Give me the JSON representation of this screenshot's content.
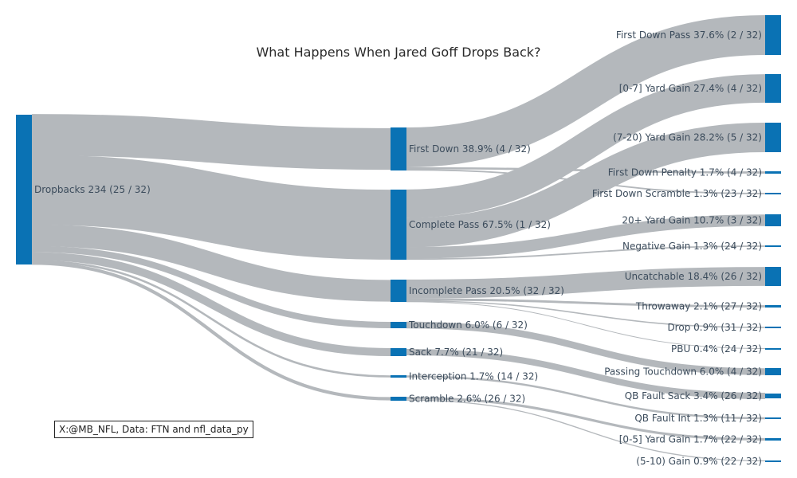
{
  "title": "What Happens When Jared Goff Drops Back?",
  "credit": "X:@MB_NFL, Data: FTN and nfl_data_py",
  "colors": {
    "node": "#0a72b4",
    "link": "#b4b8bc",
    "text": "#3c4c5c"
  },
  "chart_data": {
    "type": "sankey",
    "nodes": [
      {
        "id": "dropbacks",
        "label": "Dropbacks 234 (25 / 32)"
      },
      {
        "id": "first_down",
        "label": "First Down 38.9% (4 / 32)"
      },
      {
        "id": "complete",
        "label": "Complete Pass 67.5% (1 / 32)"
      },
      {
        "id": "incomplete",
        "label": "Incomplete Pass 20.5% (32 / 32)"
      },
      {
        "id": "touchdown",
        "label": "Touchdown 6.0% (6 / 32)"
      },
      {
        "id": "sack",
        "label": "Sack 7.7% (21 / 32)"
      },
      {
        "id": "interception",
        "label": "Interception 1.7% (14 / 32)"
      },
      {
        "id": "scramble",
        "label": "Scramble 2.6% (26 / 32)"
      },
      {
        "id": "fd_pass",
        "label": "First Down Pass 37.6% (2 / 32)"
      },
      {
        "id": "gain_0_7",
        "label": "[0-7] Yard Gain 27.4% (4 / 32)"
      },
      {
        "id": "gain_7_20",
        "label": "(7-20) Yard Gain 28.2% (5 / 32)"
      },
      {
        "id": "fd_penalty",
        "label": "First Down Penalty 1.7% (4 / 32)"
      },
      {
        "id": "fd_scramble",
        "label": "First Down Scramble 1.3% (23 / 32)"
      },
      {
        "id": "gain_20",
        "label": "20+ Yard Gain 10.7% (3 / 32)"
      },
      {
        "id": "neg_gain",
        "label": "Negative Gain 1.3% (24 / 32)"
      },
      {
        "id": "uncatchable",
        "label": "Uncatchable 18.4% (26 / 32)"
      },
      {
        "id": "throwaway",
        "label": "Throwaway 2.1% (27 / 32)"
      },
      {
        "id": "drop",
        "label": "Drop 0.9% (31 / 32)"
      },
      {
        "id": "pbu",
        "label": "PBU 0.4% (24 / 32)"
      },
      {
        "id": "pass_td",
        "label": "Passing Touchdown 6.0% (4 / 32)"
      },
      {
        "id": "qb_sack",
        "label": "QB Fault Sack 3.4% (26 / 32)"
      },
      {
        "id": "qb_int",
        "label": "QB Fault Int 1.3% (11 / 32)"
      },
      {
        "id": "gain_0_5",
        "label": "[0-5] Yard Gain 1.7% (22 / 32)"
      },
      {
        "id": "gain_5_10",
        "label": "(5-10) Gain 0.9% (22 / 32)"
      }
    ],
    "links": [
      {
        "source": "dropbacks",
        "target": "first_down",
        "value": 91
      },
      {
        "source": "dropbacks",
        "target": "complete",
        "value": 158
      },
      {
        "source": "dropbacks",
        "target": "incomplete",
        "value": 48
      },
      {
        "source": "dropbacks",
        "target": "touchdown",
        "value": 14
      },
      {
        "source": "dropbacks",
        "target": "sack",
        "value": 18
      },
      {
        "source": "dropbacks",
        "target": "interception",
        "value": 4
      },
      {
        "source": "dropbacks",
        "target": "scramble",
        "value": 6
      },
      {
        "source": "first_down",
        "target": "fd_pass",
        "value": 88
      },
      {
        "source": "first_down",
        "target": "fd_penalty",
        "value": 4
      },
      {
        "source": "first_down",
        "target": "fd_scramble",
        "value": 3
      },
      {
        "source": "complete",
        "target": "gain_0_7",
        "value": 64
      },
      {
        "source": "complete",
        "target": "gain_7_20",
        "value": 66
      },
      {
        "source": "complete",
        "target": "gain_20",
        "value": 25
      },
      {
        "source": "complete",
        "target": "neg_gain",
        "value": 3
      },
      {
        "source": "incomplete",
        "target": "uncatchable",
        "value": 43
      },
      {
        "source": "incomplete",
        "target": "throwaway",
        "value": 5
      },
      {
        "source": "incomplete",
        "target": "drop",
        "value": 2
      },
      {
        "source": "incomplete",
        "target": "pbu",
        "value": 1
      },
      {
        "source": "touchdown",
        "target": "pass_td",
        "value": 14
      },
      {
        "source": "sack",
        "target": "qb_sack",
        "value": 8
      },
      {
        "source": "interception",
        "target": "qb_int",
        "value": 3
      },
      {
        "source": "scramble",
        "target": "gain_0_5",
        "value": 4
      },
      {
        "source": "scramble",
        "target": "gain_5_10",
        "value": 2
      }
    ]
  }
}
